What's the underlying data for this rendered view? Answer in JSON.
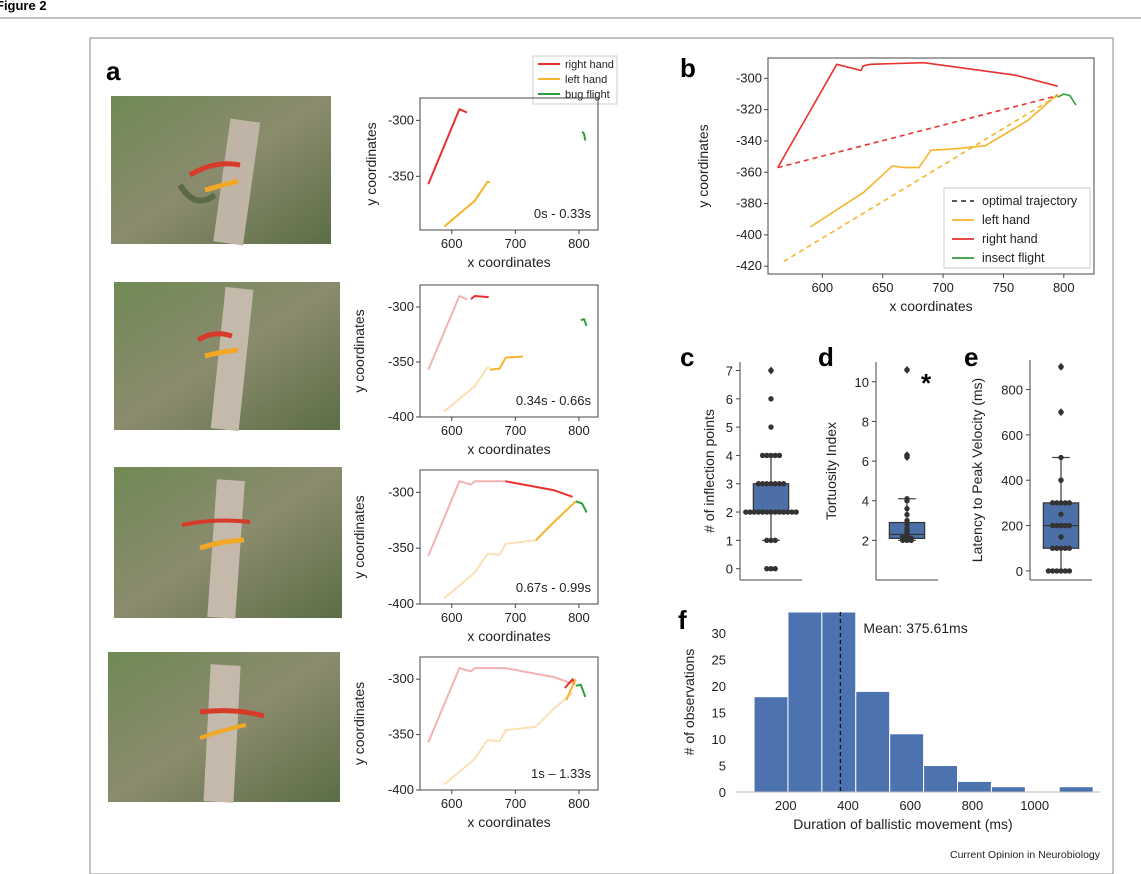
{
  "figure": {
    "header": "Figure 2",
    "credit": "Current Opinion in Neurobiology"
  },
  "panels": {
    "a_letter": "a",
    "b_letter": "b",
    "c_letter": "c",
    "d_letter": "d",
    "e_letter": "e",
    "f_letter": "f",
    "asterisk": "*"
  },
  "colors": {
    "right_hand": "#e8312f",
    "left_hand": "#f7b32b",
    "flight": "#2e9e3a",
    "box_fill": "#4c6fa8",
    "hist_fill": "#4c72b0",
    "faded_right": "#f3b3b2",
    "faded_left": "#fbe0b4"
  },
  "chart_data": [
    {
      "id": "a-legend",
      "type": "line",
      "legend": [
        "right hand",
        "left hand",
        "bug flight"
      ]
    },
    {
      "id": "a1",
      "type": "line",
      "xlabel": "x coordinates",
      "ylabel": "y coordinates",
      "xlim": [
        550,
        830
      ],
      "ylim": [
        -398,
        -280
      ],
      "xticks": [
        "600",
        "700",
        "800"
      ],
      "yticks": [
        "-300",
        "-350"
      ],
      "annotation": "0s - 0.33s",
      "series": [
        {
          "name": "right hand",
          "x": [
            563,
            612,
            624
          ],
          "y": [
            -357,
            -290,
            -293
          ]
        },
        {
          "name": "left hand",
          "x": [
            588,
            636,
            656,
            660
          ],
          "y": [
            -395,
            -372,
            -355,
            -355
          ]
        },
        {
          "name": "bug flight",
          "x": [
            805,
            808,
            810
          ],
          "y": [
            -310,
            -312,
            -318
          ]
        }
      ]
    },
    {
      "id": "a2",
      "type": "line",
      "xlabel": "x coordinates",
      "ylabel": "y coordinates",
      "xlim": [
        550,
        830
      ],
      "ylim": [
        -400,
        -280
      ],
      "xticks": [
        "600",
        "700",
        "800"
      ],
      "yticks": [
        "-300",
        "-350",
        "-400"
      ],
      "annotation": "0.34s - 0.66s",
      "series": [
        {
          "name": "right hand (prior)",
          "x": [
            563,
            612,
            624
          ],
          "y": [
            -357,
            -290,
            -293
          ]
        },
        {
          "name": "left hand (prior)",
          "x": [
            588,
            636,
            656,
            660
          ],
          "y": [
            -395,
            -372,
            -355,
            -355
          ]
        },
        {
          "name": "right hand",
          "x": [
            630,
            636,
            658
          ],
          "y": [
            -293,
            -290,
            -291
          ]
        },
        {
          "name": "left hand",
          "x": [
            660,
            675,
            685,
            712
          ],
          "y": [
            -357,
            -356,
            -346,
            -345
          ]
        },
        {
          "name": "bug flight",
          "x": [
            803,
            808,
            812
          ],
          "y": [
            -312,
            -311,
            -317
          ]
        }
      ]
    },
    {
      "id": "a3",
      "type": "line",
      "xlabel": "x coordinates",
      "ylabel": "y coordinates",
      "xlim": [
        550,
        830
      ],
      "ylim": [
        -400,
        -280
      ],
      "xticks": [
        "600",
        "700",
        "800"
      ],
      "yticks": [
        "-300",
        "-350",
        "-400"
      ],
      "annotation": "0.67s - 0.99s",
      "series": [
        {
          "name": "right hand (prior)",
          "x": [
            563,
            612,
            630,
            636,
            684
          ],
          "y": [
            -357,
            -290,
            -293,
            -290,
            -290
          ]
        },
        {
          "name": "left hand (prior)",
          "x": [
            588,
            636,
            656,
            675,
            685,
            732
          ],
          "y": [
            -395,
            -372,
            -355,
            -356,
            -346,
            -343
          ]
        },
        {
          "name": "right hand",
          "x": [
            684,
            760,
            790
          ],
          "y": [
            -290,
            -298,
            -304
          ]
        },
        {
          "name": "left hand",
          "x": [
            732,
            760,
            795
          ],
          "y": [
            -343,
            -327,
            -308
          ]
        },
        {
          "name": "bug flight",
          "x": [
            795,
            805,
            812
          ],
          "y": [
            -308,
            -310,
            -318
          ]
        }
      ]
    },
    {
      "id": "a4",
      "type": "line",
      "xlabel": "x coordinates",
      "ylabel": "y coordinates",
      "xlim": [
        550,
        830
      ],
      "ylim": [
        -400,
        -280
      ],
      "xticks": [
        "600",
        "700",
        "800"
      ],
      "yticks": [
        "-300",
        "-350",
        "-400"
      ],
      "annotation": "1s – 1.33s",
      "series": [
        {
          "name": "right hand (prior)",
          "x": [
            563,
            612,
            630,
            636,
            684,
            760,
            790
          ],
          "y": [
            -357,
            -290,
            -293,
            -290,
            -290,
            -298,
            -304
          ]
        },
        {
          "name": "left hand (prior)",
          "x": [
            588,
            636,
            656,
            675,
            685,
            732,
            760,
            790
          ],
          "y": [
            -395,
            -372,
            -355,
            -356,
            -346,
            -343,
            -327,
            -312
          ]
        },
        {
          "name": "right hand",
          "x": [
            778,
            790,
            793
          ],
          "y": [
            -308,
            -300,
            -305
          ]
        },
        {
          "name": "left hand",
          "x": [
            780,
            790,
            795
          ],
          "y": [
            -319,
            -306,
            -300
          ]
        },
        {
          "name": "bug flight",
          "x": [
            795,
            803,
            810
          ],
          "y": [
            -306,
            -305,
            -316
          ]
        }
      ]
    },
    {
      "id": "b",
      "type": "line",
      "xlabel": "x coordinates",
      "ylabel": "y coordinates",
      "xlim": [
        555,
        825
      ],
      "ylim": [
        -425,
        -287
      ],
      "xticks": [
        "600",
        "650",
        "700",
        "750",
        "800"
      ],
      "yticks": [
        "-300",
        "-320",
        "-340",
        "-360",
        "-380",
        "-400",
        "-420"
      ],
      "legend": [
        "optimal trajectory",
        "left hand",
        "right hand",
        "insect flight"
      ],
      "series": [
        {
          "name": "right hand",
          "style": "solid",
          "x": [
            563,
            612,
            632,
            634,
            640,
            684,
            760,
            795
          ],
          "y": [
            -357,
            -291,
            -295,
            -292,
            -291,
            -290,
            -298,
            -305
          ]
        },
        {
          "name": "left hand",
          "style": "solid",
          "x": [
            590,
            634,
            658,
            668,
            680,
            690,
            710,
            735,
            770,
            795
          ],
          "y": [
            -395,
            -373,
            -356,
            -357,
            -357,
            -346,
            -345,
            -343,
            -327,
            -310
          ]
        },
        {
          "name": "right hand optimal",
          "style": "dashed",
          "x": [
            563,
            795
          ],
          "y": [
            -357,
            -311
          ]
        },
        {
          "name": "left hand optimal",
          "style": "dashed",
          "x": [
            568,
            795
          ],
          "y": [
            -417,
            -311
          ]
        },
        {
          "name": "insect flight",
          "style": "solid",
          "x": [
            795,
            800,
            805,
            810
          ],
          "y": [
            -312,
            -310,
            -311,
            -317
          ]
        }
      ]
    },
    {
      "id": "c",
      "type": "scatter",
      "subtype": "box",
      "ylabel": "# of inflection points",
      "ylim": [
        -0.4,
        7.3
      ],
      "yticks": [
        "0",
        "1",
        "2",
        "3",
        "4",
        "5",
        "6",
        "7"
      ],
      "box": {
        "q1": 2,
        "median": 2,
        "q3": 3,
        "whisker_low": 1,
        "whisker_high": 4,
        "outliers": [
          7
        ]
      },
      "points": [
        0,
        0,
        0,
        1,
        1,
        1,
        2,
        2,
        2,
        2,
        2,
        2,
        2,
        2,
        2,
        2,
        2,
        2,
        2,
        3,
        3,
        3,
        3,
        3,
        3,
        3,
        4,
        4,
        4,
        4,
        4,
        5,
        6,
        7
      ]
    },
    {
      "id": "d",
      "type": "scatter",
      "subtype": "box",
      "ylabel": "Tortuosity Index",
      "ylim": [
        0,
        11
      ],
      "yticks": [
        "2",
        "4",
        "6",
        "8",
        "10"
      ],
      "box": {
        "q1": 2.1,
        "median": 2.3,
        "q3": 2.9,
        "whisker_low": 2.0,
        "whisker_high": 4.1,
        "outliers": [
          6.2,
          6.3,
          10.6
        ]
      },
      "points": [
        2.0,
        2.0,
        2.0,
        2.05,
        2.05,
        2.1,
        2.1,
        2.1,
        2.15,
        2.2,
        2.2,
        2.25,
        2.3,
        2.35,
        2.4,
        2.5,
        2.6,
        2.8,
        3.0,
        3.3,
        3.6,
        4.0,
        4.1,
        6.2,
        6.3,
        10.6
      ]
    },
    {
      "id": "e",
      "type": "scatter",
      "subtype": "box",
      "ylabel": "Latency to Peak Velocity (ms)",
      "ylim": [
        -40,
        930
      ],
      "yticks": [
        "0",
        "200",
        "400",
        "600",
        "800"
      ],
      "box": {
        "q1": 100,
        "median": 200,
        "q3": 300,
        "whisker_low": 0,
        "whisker_high": 500,
        "outliers": [
          700,
          900
        ]
      },
      "points": [
        0,
        0,
        0,
        0,
        0,
        0,
        100,
        100,
        100,
        100,
        100,
        150,
        200,
        200,
        200,
        200,
        200,
        250,
        300,
        300,
        300,
        300,
        300,
        400,
        500,
        700,
        900
      ]
    },
    {
      "id": "f",
      "type": "bar",
      "subtype": "histogram",
      "xlabel": "Duration of ballistic movement (ms)",
      "ylabel": "# of observations",
      "xlim": [
        40,
        1210
      ],
      "ylim": [
        0,
        34
      ],
      "xticks": [
        "200",
        "400",
        "600",
        "800",
        "1000"
      ],
      "yticks": [
        "0",
        "5",
        "10",
        "15",
        "20",
        "25",
        "30"
      ],
      "bin_edges": [
        98,
        207,
        316,
        425,
        534,
        643,
        752,
        861,
        970,
        1079,
        1188
      ],
      "counts": [
        18,
        34,
        34,
        19,
        11,
        5,
        2,
        1,
        0,
        1
      ],
      "mean": 375.61,
      "mean_label": "Mean: 375.61ms"
    }
  ]
}
